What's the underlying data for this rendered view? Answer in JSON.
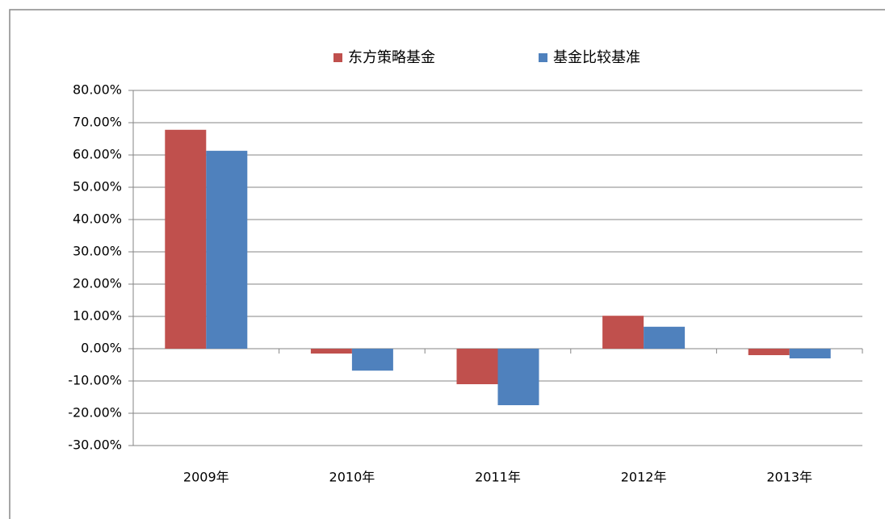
{
  "chart_data": {
    "type": "bar",
    "categories": [
      "2009年",
      "2010年",
      "2011年",
      "2012年",
      "2013年"
    ],
    "series": [
      {
        "name": "东方策略基金",
        "color": "#c0504d",
        "values": [
          67.8,
          -1.5,
          -11.0,
          10.2,
          -2.0
        ]
      },
      {
        "name": "基金比较基准",
        "color": "#4f81bd",
        "values": [
          61.3,
          -6.8,
          -17.5,
          6.8,
          -3.0
        ]
      }
    ],
    "ylim": [
      -30,
      80
    ],
    "yticks": [
      {
        "value": -30,
        "label": "-30.00%"
      },
      {
        "value": -20,
        "label": "-20.00%"
      },
      {
        "value": -10,
        "label": "-10.00%"
      },
      {
        "value": 0,
        "label": "0.00%"
      },
      {
        "value": 10,
        "label": "10.00%"
      },
      {
        "value": 20,
        "label": "20.00%"
      },
      {
        "value": 30,
        "label": "30.00%"
      },
      {
        "value": 40,
        "label": "40.00%"
      },
      {
        "value": 50,
        "label": "50.00%"
      },
      {
        "value": 60,
        "label": "60.00%"
      },
      {
        "value": 70,
        "label": "70.00%"
      },
      {
        "value": 80,
        "label": "80.00%"
      }
    ],
    "grid": true,
    "legend": "top"
  }
}
